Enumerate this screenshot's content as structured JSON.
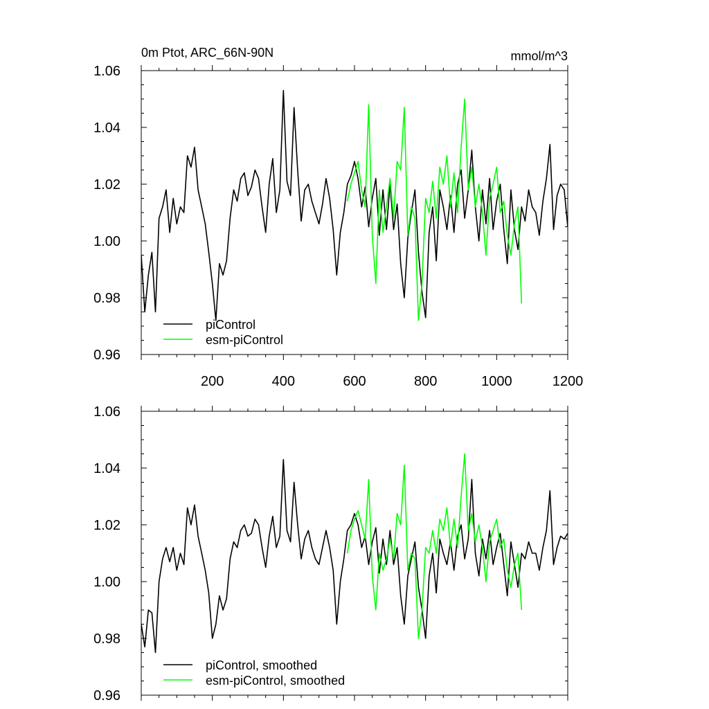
{
  "chart_data": [
    {
      "type": "line",
      "title_left": "0m Ptot, ARC_66N-90N",
      "title_right": "mmol/m^3",
      "xlim": [
        0,
        1200
      ],
      "ylim": [
        0.96,
        1.06
      ],
      "xticks": [
        200,
        400,
        600,
        800,
        1000,
        1200
      ],
      "yticks": [
        0.96,
        0.98,
        1.0,
        1.02,
        1.04,
        1.06
      ],
      "ytick_labels": [
        "0.96",
        "0.98",
        "1.00",
        "1.02",
        "1.04",
        "1.06"
      ],
      "legend": [
        "piControl",
        "esm-piControl"
      ],
      "legend_position": "bottom-left",
      "series": [
        {
          "name": "piControl",
          "color": "#000000",
          "x": [
            0,
            10,
            20,
            30,
            40,
            50,
            60,
            70,
            80,
            90,
            100,
            110,
            120,
            130,
            140,
            150,
            160,
            170,
            180,
            190,
            200,
            210,
            220,
            230,
            240,
            250,
            260,
            270,
            280,
            290,
            300,
            310,
            320,
            330,
            340,
            350,
            360,
            370,
            380,
            390,
            400,
            410,
            420,
            430,
            440,
            450,
            460,
            470,
            480,
            490,
            500,
            510,
            520,
            530,
            540,
            550,
            560,
            570,
            580,
            590,
            600,
            610,
            620,
            630,
            640,
            650,
            660,
            670,
            680,
            690,
            700,
            710,
            720,
            730,
            740,
            750,
            760,
            770,
            780,
            790,
            800,
            810,
            820,
            830,
            840,
            850,
            860,
            870,
            880,
            890,
            900,
            910,
            920,
            930,
            940,
            950,
            960,
            970,
            980,
            990,
            1000,
            1010,
            1020,
            1030,
            1040,
            1050,
            1060,
            1070,
            1080,
            1090,
            1100,
            1110,
            1120,
            1130,
            1140,
            1150,
            1160,
            1170,
            1180,
            1190,
            1200
          ],
          "values": [
            0.995,
            0.975,
            0.988,
            0.996,
            0.975,
            1.008,
            1.012,
            1.018,
            1.003,
            1.015,
            1.006,
            1.012,
            1.01,
            1.03,
            1.026,
            1.033,
            1.018,
            1.012,
            1.006,
            0.996,
            0.985,
            0.972,
            0.992,
            0.988,
            0.993,
            1.008,
            1.018,
            1.014,
            1.022,
            1.024,
            1.016,
            1.019,
            1.025,
            1.022,
            1.012,
            1.003,
            1.02,
            1.029,
            1.01,
            1.018,
            1.053,
            1.021,
            1.016,
            1.047,
            1.025,
            1.007,
            1.018,
            1.02,
            1.014,
            1.01,
            1.006,
            1.013,
            1.022,
            1.015,
            1.004,
            0.988,
            1.003,
            1.01,
            1.02,
            1.023,
            1.028,
            1.022,
            1.012,
            1.019,
            1.005,
            1.015,
            1.022,
            1.002,
            1.018,
            1.004,
            1.02,
            1.004,
            1.013,
            0.992,
            0.98,
            1.001,
            1.01,
            1.018,
            0.996,
            0.982,
            0.973,
            1.003,
            1.012,
            0.993,
            1.018,
            1.012,
            1.004,
            1.016,
            1.003,
            1.02,
            1.025,
            1.008,
            1.018,
            1.032,
            1.012,
            1.0,
            1.018,
            1.006,
            1.022,
            1.004,
            1.014,
            1.02,
            1.004,
            0.992,
            1.018,
            1.004,
            0.997,
            1.012,
            1.007,
            1.018,
            1.012,
            1.01,
            1.002,
            1.014,
            1.022,
            1.034,
            1.004,
            1.016,
            1.02,
            1.018,
            1.005
          ]
        },
        {
          "name": "esm-piControl",
          "color": "#00ff00",
          "x": [
            580,
            590,
            600,
            610,
            620,
            630,
            640,
            650,
            660,
            670,
            680,
            690,
            700,
            710,
            720,
            730,
            740,
            750,
            760,
            770,
            780,
            790,
            800,
            810,
            820,
            830,
            840,
            850,
            860,
            870,
            880,
            890,
            900,
            910,
            920,
            930,
            940,
            950,
            960,
            970,
            980,
            990,
            1000,
            1010,
            1020,
            1030,
            1040,
            1050,
            1060,
            1070
          ],
          "values": [
            1.014,
            1.02,
            1.024,
            1.028,
            1.018,
            1.012,
            1.048,
            1.002,
            0.985,
            1.018,
            1.003,
            1.012,
            1.022,
            1.008,
            1.028,
            1.025,
            1.047,
            1.002,
            1.012,
            1.008,
            0.972,
            0.985,
            1.015,
            1.01,
            1.021,
            1.008,
            1.026,
            1.02,
            1.03,
            1.012,
            1.024,
            1.01,
            1.033,
            1.05,
            1.018,
            1.026,
            1.012,
            1.02,
            1.01,
            0.995,
            1.015,
            1.02,
            1.026,
            1.01,
            1.014,
            1.002,
            0.995,
            1.006,
            1.012,
            0.978
          ]
        }
      ]
    },
    {
      "type": "line",
      "xlim": [
        0,
        1200
      ],
      "ylim": [
        0.96,
        1.06
      ],
      "yticks": [
        0.96,
        0.98,
        1.0,
        1.02,
        1.04,
        1.06
      ],
      "ytick_labels": [
        "0.96",
        "0.98",
        "1.00",
        "1.02",
        "1.04",
        "1.06"
      ],
      "legend": [
        "piControl, smoothed",
        "esm-piControl, smoothed"
      ],
      "legend_position": "bottom-left",
      "series": [
        {
          "name": "piControl, smoothed",
          "color": "#000000",
          "x": [
            0,
            10,
            20,
            30,
            40,
            50,
            60,
            70,
            80,
            90,
            100,
            110,
            120,
            130,
            140,
            150,
            160,
            170,
            180,
            190,
            200,
            210,
            220,
            230,
            240,
            250,
            260,
            270,
            280,
            290,
            300,
            310,
            320,
            330,
            340,
            350,
            360,
            370,
            380,
            390,
            400,
            410,
            420,
            430,
            440,
            450,
            460,
            470,
            480,
            490,
            500,
            510,
            520,
            530,
            540,
            550,
            560,
            570,
            580,
            590,
            600,
            610,
            620,
            630,
            640,
            650,
            660,
            670,
            680,
            690,
            700,
            710,
            720,
            730,
            740,
            750,
            760,
            770,
            780,
            790,
            800,
            810,
            820,
            830,
            840,
            850,
            860,
            870,
            880,
            890,
            900,
            910,
            920,
            930,
            940,
            950,
            960,
            970,
            980,
            990,
            1000,
            1010,
            1020,
            1030,
            1040,
            1050,
            1060,
            1070,
            1080,
            1090,
            1100,
            1110,
            1120,
            1130,
            1140,
            1150,
            1160,
            1170,
            1180,
            1190,
            1200
          ],
          "values": [
            0.985,
            0.977,
            0.99,
            0.989,
            0.975,
            1.0,
            1.008,
            1.012,
            1.007,
            1.012,
            1.004,
            1.01,
            1.006,
            1.026,
            1.02,
            1.027,
            1.016,
            1.01,
            1.004,
            0.996,
            0.98,
            0.985,
            0.995,
            0.99,
            0.994,
            1.008,
            1.014,
            1.012,
            1.018,
            1.02,
            1.016,
            1.017,
            1.022,
            1.02,
            1.012,
            1.005,
            1.016,
            1.023,
            1.012,
            1.016,
            1.043,
            1.018,
            1.014,
            1.035,
            1.02,
            1.008,
            1.015,
            1.018,
            1.012,
            1.008,
            1.006,
            1.012,
            1.018,
            1.012,
            1.004,
            0.985,
            1.0,
            1.008,
            1.018,
            1.02,
            1.024,
            1.02,
            1.012,
            1.016,
            1.006,
            1.014,
            1.019,
            1.003,
            1.015,
            1.006,
            1.018,
            1.006,
            1.012,
            0.995,
            0.985,
            1.002,
            1.008,
            1.014,
            0.998,
            0.99,
            0.98,
            1.002,
            1.01,
            0.996,
            1.015,
            1.01,
            1.006,
            1.014,
            1.004,
            1.016,
            1.02,
            1.008,
            1.015,
            1.036,
            1.01,
            1.002,
            1.015,
            1.008,
            1.018,
            1.006,
            1.012,
            1.017,
            1.006,
            0.995,
            1.014,
            1.006,
            0.998,
            1.01,
            1.008,
            1.014,
            1.01,
            1.01,
            1.004,
            1.012,
            1.018,
            1.032,
            1.006,
            1.012,
            1.016,
            1.015,
            1.017
          ]
        },
        {
          "name": "esm-piControl, smoothed",
          "color": "#00ff00",
          "x": [
            580,
            590,
            600,
            610,
            620,
            630,
            640,
            650,
            660,
            670,
            680,
            690,
            700,
            710,
            720,
            730,
            740,
            750,
            760,
            770,
            780,
            790,
            800,
            810,
            820,
            830,
            840,
            850,
            860,
            870,
            880,
            890,
            900,
            910,
            920,
            930,
            940,
            950,
            960,
            970,
            980,
            990,
            1000,
            1010,
            1020,
            1030,
            1040,
            1050,
            1060,
            1070
          ],
          "values": [
            1.01,
            1.018,
            1.022,
            1.025,
            1.02,
            1.015,
            1.036,
            1.002,
            0.99,
            1.01,
            1.004,
            1.008,
            1.015,
            1.008,
            1.024,
            1.02,
            1.041,
            1.004,
            1.01,
            1.008,
            0.98,
            0.99,
            1.012,
            1.01,
            1.018,
            1.01,
            1.022,
            1.018,
            1.026,
            1.012,
            1.022,
            1.012,
            1.03,
            1.045,
            1.018,
            1.024,
            1.014,
            1.02,
            1.012,
            1.0,
            1.014,
            1.018,
            1.022,
            1.012,
            1.015,
            1.004,
            0.998,
            1.006,
            1.01,
            0.99
          ]
        }
      ]
    }
  ]
}
